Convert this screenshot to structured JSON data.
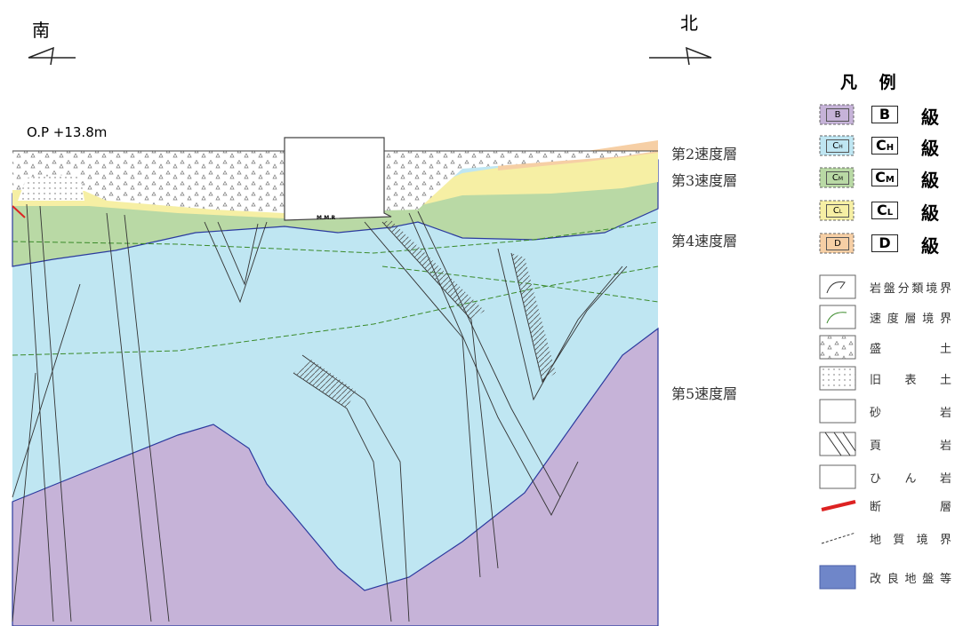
{
  "compass": {
    "south": "南",
    "north": "北"
  },
  "section": {
    "elevation": "O.P +13.8m",
    "structure": "M.M.R",
    "velocity_layers": [
      "第2速度層",
      "第3速度層",
      "第4速度層",
      "第5速度層"
    ]
  },
  "legend": {
    "title": "凡 例",
    "rock_classes": [
      {
        "code": "B",
        "grade": "級"
      },
      {
        "code": "C",
        "sub": "H",
        "grade": "級"
      },
      {
        "code": "C",
        "sub": "M",
        "grade": "級"
      },
      {
        "code": "C",
        "sub": "L",
        "grade": "級"
      },
      {
        "code": "D",
        "grade": "級"
      }
    ],
    "symbols": [
      "岩盤分類境界",
      "速 度 層 境 界",
      "盛 土",
      "旧 表 土",
      "砂 岩",
      "頁 岩",
      "ひ ん 岩",
      "断 層",
      "地 質 境 界",
      "改 良 地 盤 等"
    ]
  }
}
